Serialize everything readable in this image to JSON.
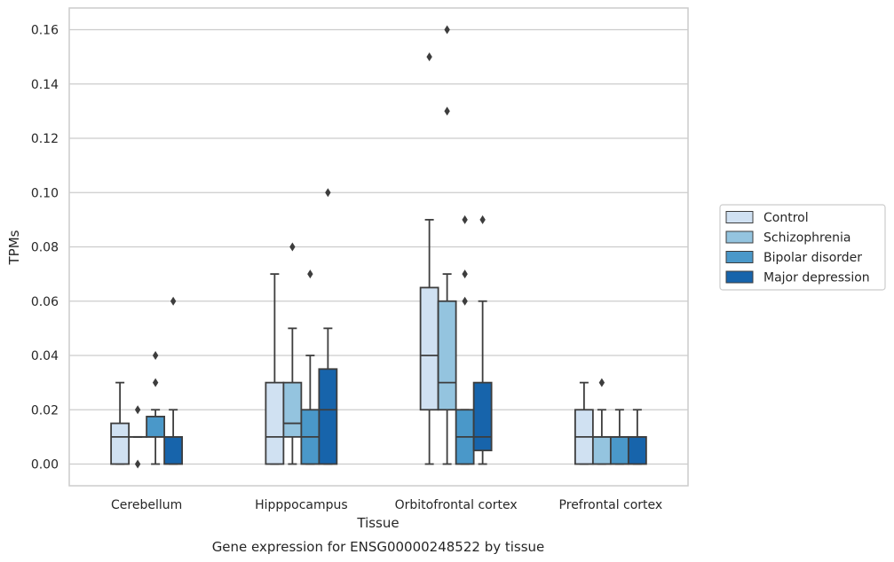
{
  "chart_data": {
    "type": "box",
    "title": "",
    "caption": "Gene expression for ENSG00000248522 by tissue",
    "xlabel": "Tissue",
    "ylabel": "TPMs",
    "ylim": [
      -0.008,
      0.168
    ],
    "yticks": [
      0.0,
      0.02,
      0.04,
      0.06,
      0.08,
      0.1,
      0.12,
      0.14,
      0.16
    ],
    "ytick_labels": [
      "0.00",
      "0.02",
      "0.04",
      "0.06",
      "0.08",
      "0.10",
      "0.12",
      "0.14",
      "0.16"
    ],
    "grid": true,
    "legend_position": "right",
    "categories": [
      "Cerebellum",
      "Hipppocampus",
      "Orbitofrontal cortex",
      "Prefrontal cortex"
    ],
    "series": [
      {
        "name": "Control",
        "color": "#d0e1f2",
        "boxes": [
          {
            "whislo": 0.0,
            "q1": 0.0,
            "med": 0.01,
            "q3": 0.015,
            "whishi": 0.03,
            "fliers": []
          },
          {
            "whislo": 0.0,
            "q1": 0.0,
            "med": 0.01,
            "q3": 0.03,
            "whishi": 0.07,
            "fliers": []
          },
          {
            "whislo": 0.0,
            "q1": 0.02,
            "med": 0.04,
            "q3": 0.065,
            "whishi": 0.09,
            "fliers": [
              0.15
            ]
          },
          {
            "whislo": 0.0,
            "q1": 0.0,
            "med": 0.01,
            "q3": 0.02,
            "whishi": 0.03,
            "fliers": []
          }
        ]
      },
      {
        "name": "Schizophrenia",
        "color": "#94c4df",
        "boxes": [
          {
            "whislo": 0.01,
            "q1": 0.01,
            "med": 0.01,
            "q3": 0.01,
            "whishi": 0.01,
            "fliers": [
              0.0,
              0.02
            ]
          },
          {
            "whislo": 0.0,
            "q1": 0.01,
            "med": 0.015,
            "q3": 0.03,
            "whishi": 0.05,
            "fliers": [
              0.08
            ]
          },
          {
            "whislo": 0.0,
            "q1": 0.02,
            "med": 0.03,
            "q3": 0.06,
            "whishi": 0.07,
            "fliers": [
              0.13,
              0.16
            ]
          },
          {
            "whislo": 0.0,
            "q1": 0.0,
            "med": 0.01,
            "q3": 0.01,
            "whishi": 0.02,
            "fliers": [
              0.03
            ]
          }
        ]
      },
      {
        "name": "Bipolar disorder",
        "color": "#4a98c9",
        "boxes": [
          {
            "whislo": 0.0,
            "q1": 0.01,
            "med": 0.01,
            "q3": 0.0175,
            "whishi": 0.02,
            "fliers": [
              0.03,
              0.04
            ]
          },
          {
            "whislo": 0.0,
            "q1": 0.0,
            "med": 0.01,
            "q3": 0.02,
            "whishi": 0.04,
            "fliers": [
              0.07
            ]
          },
          {
            "whislo": 0.0,
            "q1": 0.0,
            "med": 0.01,
            "q3": 0.02,
            "whishi": 0.02,
            "fliers": [
              0.06,
              0.07,
              0.09
            ]
          },
          {
            "whislo": 0.0,
            "q1": 0.0,
            "med": 0.01,
            "q3": 0.01,
            "whishi": 0.02,
            "fliers": []
          }
        ]
      },
      {
        "name": "Major depression",
        "color": "#1764ab",
        "boxes": [
          {
            "whislo": 0.0,
            "q1": 0.0,
            "med": 0.01,
            "q3": 0.01,
            "whishi": 0.02,
            "fliers": [
              0.06
            ]
          },
          {
            "whislo": 0.0,
            "q1": 0.0,
            "med": 0.02,
            "q3": 0.035,
            "whishi": 0.05,
            "fliers": [
              0.1
            ]
          },
          {
            "whislo": 0.0,
            "q1": 0.005,
            "med": 0.01,
            "q3": 0.03,
            "whishi": 0.06,
            "fliers": [
              0.09
            ]
          },
          {
            "whislo": 0.0,
            "q1": 0.0,
            "med": 0.01,
            "q3": 0.01,
            "whishi": 0.02,
            "fliers": []
          }
        ]
      }
    ]
  }
}
